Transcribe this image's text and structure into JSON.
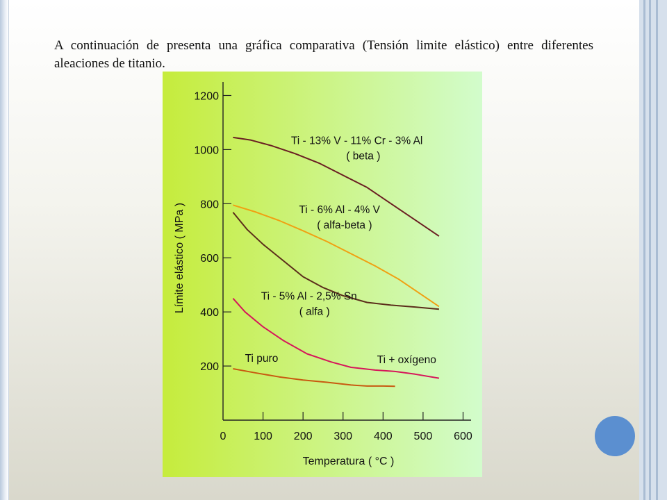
{
  "intro_text": "A continuación de presenta una gráfica comparativa (Tensión limite elástico) entre diferentes aleaciones de titanio.",
  "colors": {
    "chart_bg_left": "#c6ec3c",
    "chart_bg_right": "#d2fccc",
    "badge": "#5b8fd0"
  },
  "chart_data": {
    "type": "line",
    "title": "",
    "xlabel": "Temperatura ( °C )",
    "ylabel": "Límite elástico ( MPa )",
    "xlim": [
      0,
      620
    ],
    "ylim": [
      0,
      1250
    ],
    "x_ticks": [
      0,
      100,
      200,
      300,
      400,
      500,
      600
    ],
    "y_ticks": [
      200,
      400,
      600,
      800,
      1000,
      1200
    ],
    "grid": false,
    "legend": "none",
    "series": [
      {
        "name": "Ti - 13% V - 11% Cr - 3% Al",
        "label_line2": "( beta )",
        "color": "#6a1e22",
        "points": [
          [
            25,
            1045
          ],
          [
            70,
            1035
          ],
          [
            120,
            1015
          ],
          [
            180,
            985
          ],
          [
            240,
            950
          ],
          [
            300,
            905
          ],
          [
            360,
            860
          ],
          [
            420,
            800
          ],
          [
            480,
            740
          ],
          [
            540,
            680
          ]
        ],
        "label_pos": [
          170,
          1020
        ]
      },
      {
        "name": "Ti - 6% Al - 4% V",
        "label_line2": "( alfa-beta )",
        "color": "#f0a012",
        "points": [
          [
            25,
            795
          ],
          [
            80,
            770
          ],
          [
            140,
            738
          ],
          [
            200,
            700
          ],
          [
            260,
            660
          ],
          [
            320,
            615
          ],
          [
            380,
            570
          ],
          [
            440,
            520
          ],
          [
            500,
            460
          ],
          [
            540,
            420
          ]
        ],
        "label_pos": [
          190,
          765
        ]
      },
      {
        "name": "Ti - 5% Al - 2,5% Sn",
        "label_line2": "( alfa )",
        "color": "#5b2d1a",
        "points": [
          [
            25,
            768
          ],
          [
            60,
            705
          ],
          [
            100,
            650
          ],
          [
            150,
            590
          ],
          [
            200,
            530
          ],
          [
            250,
            490
          ],
          [
            300,
            460
          ],
          [
            360,
            435
          ],
          [
            420,
            425
          ],
          [
            480,
            418
          ],
          [
            540,
            410
          ]
        ],
        "label_pos": [
          95,
          445
        ]
      },
      {
        "name": "Ti + oxígeno",
        "label_line2": "",
        "color": "#d6165a",
        "points": [
          [
            25,
            450
          ],
          [
            55,
            400
          ],
          [
            100,
            345
          ],
          [
            150,
            295
          ],
          [
            210,
            245
          ],
          [
            270,
            215
          ],
          [
            320,
            195
          ],
          [
            380,
            185
          ],
          [
            430,
            180
          ],
          [
            480,
            170
          ],
          [
            540,
            155
          ]
        ],
        "label_pos": [
          385,
          210
        ]
      },
      {
        "name": "Ti puro",
        "label_line2": "",
        "color": "#c85a10",
        "points": [
          [
            25,
            190
          ],
          [
            80,
            175
          ],
          [
            140,
            160
          ],
          [
            200,
            148
          ],
          [
            260,
            140
          ],
          [
            320,
            130
          ],
          [
            360,
            126
          ],
          [
            400,
            126
          ],
          [
            430,
            125
          ]
        ],
        "label_pos": [
          55,
          215
        ]
      }
    ]
  }
}
